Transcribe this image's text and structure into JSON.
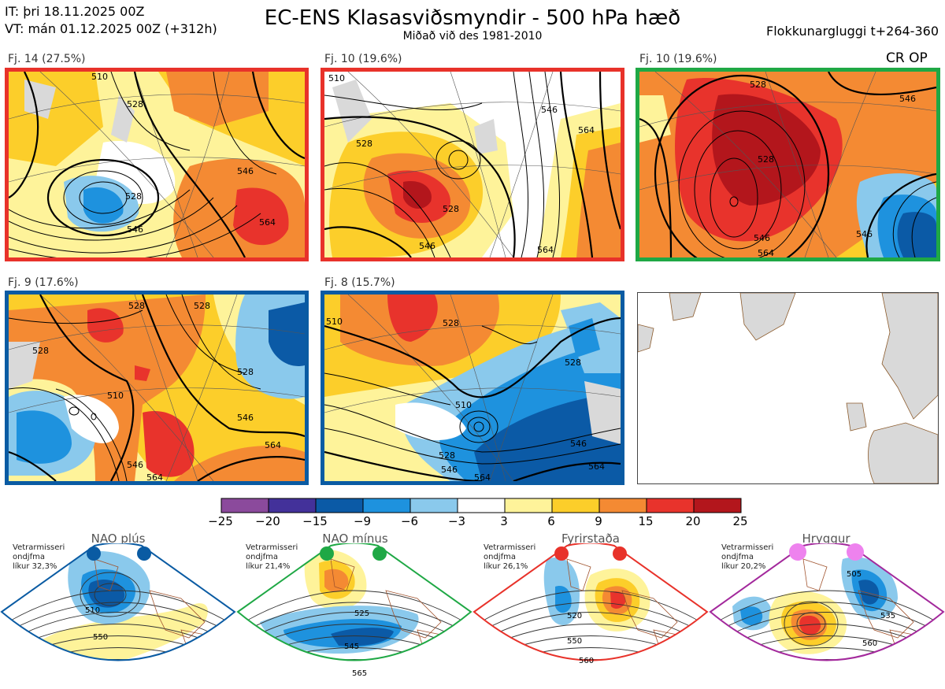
{
  "header": {
    "it_line": "IT: þri 18.11.2025 00Z",
    "vt_line": "VT: mán 01.12.2025 00Z  (+312h)",
    "title": "EC-ENS Klasasviðsmyndir - 500 hPa hæð",
    "subtitle": "Miðað við des 1981-2010",
    "window": "Flokkunargluggi t+264-360"
  },
  "panels": [
    {
      "label": "Fj. 14 (27.5%)",
      "frame_color": "#e8322a",
      "contours": [
        "510",
        "528",
        "546",
        "564",
        "546",
        "528"
      ]
    },
    {
      "label": "Fj. 10 (19.6%)",
      "frame_color": "#e8322a",
      "contours": [
        "510",
        "528",
        "528",
        "546",
        "564",
        "546",
        "564"
      ]
    },
    {
      "label": "Fj. 10 (19.6%)",
      "frame_color": "#1fa845",
      "tag": "CR OP",
      "contours": [
        "528",
        "546",
        "528",
        "546",
        "564",
        "546"
      ]
    },
    {
      "label": "Fj. 9 (17.6%)",
      "frame_color": "#0a5ba3",
      "contours": [
        "528",
        "528",
        "510",
        "528",
        "546",
        "546",
        "564",
        "528",
        "564"
      ]
    },
    {
      "label": "Fj. 8 (15.7%)",
      "frame_color": "#0a5ba3",
      "contours": [
        "510",
        "528",
        "528",
        "510",
        "528",
        "546",
        "546",
        "564",
        "564"
      ]
    }
  ],
  "colorbar": {
    "colors": [
      "#8b4a9c",
      "#43319a",
      "#0b5aa6",
      "#1e92de",
      "#8ac9ec",
      "#ffffff",
      "#fef39a",
      "#fcce2a",
      "#f48a33",
      "#e8332c",
      "#b3161c"
    ],
    "labels": [
      "−25",
      "−20",
      "−15",
      "−9",
      "−6",
      "−3",
      "3",
      "6",
      "9",
      "15",
      "20",
      "25"
    ]
  },
  "regimes": [
    {
      "name": "NAO plús",
      "stat1": "Vetrarmisseri",
      "stat2": "ondjfma",
      "stat3": "líkur 32,3%",
      "color": "#0a5ba3",
      "contours": [
        "510",
        "550"
      ]
    },
    {
      "name": "NAO mínus",
      "stat1": "Vetrarmisseri",
      "stat2": "ondjfma",
      "stat3": "líkur 21,4%",
      "color": "#1fa845",
      "contours": [
        "525",
        "545",
        "565"
      ]
    },
    {
      "name": "Fyrirstaða",
      "stat1": "Vetrarmisseri",
      "stat2": "ondjfma",
      "stat3": "líkur 26,1%",
      "color": "#e8322a",
      "contours": [
        "520",
        "550",
        "560"
      ]
    },
    {
      "name": "Hryggur",
      "stat1": "Vetrarmisseri",
      "stat2": "ondjfma",
      "stat3": "líkur 20,2%",
      "color": "#a3299c",
      "contours": [
        "505",
        "535",
        "560"
      ]
    }
  ]
}
